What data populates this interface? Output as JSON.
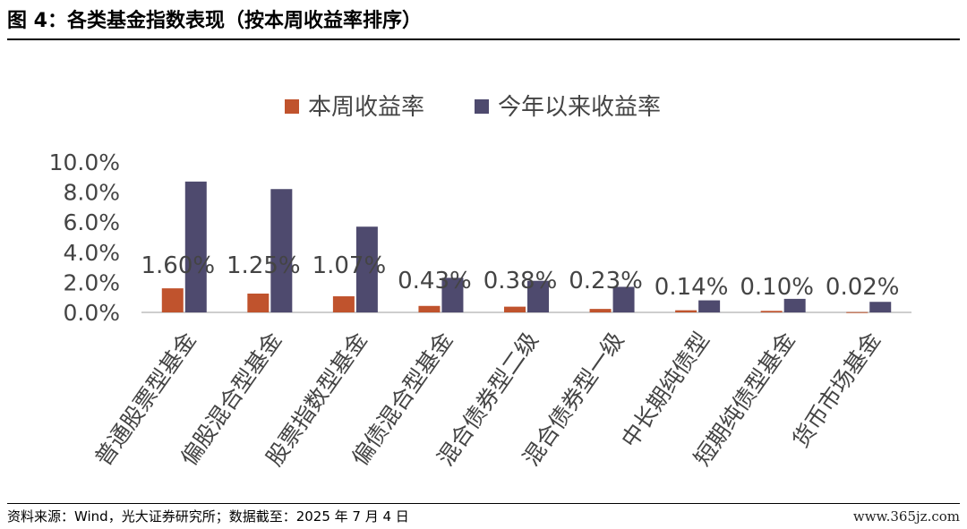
{
  "figure": {
    "title": "图 4：各类基金指数表现（按本周收益率排序）",
    "source": "资料来源：Wind，光大证券研究所；数据截至：2025 年 7 月 4 日",
    "watermark": "www.365jz.com"
  },
  "chart_data": {
    "type": "bar",
    "categories": [
      "普通股票型基金",
      "偏股混合型基金",
      "股票指数型基金",
      "偏债混合型基金",
      "混合债券型二级",
      "混合债券型一级",
      "中长期纯债型",
      "短期纯债型基金",
      "货币市场基金"
    ],
    "series": [
      {
        "name": "本周收益率",
        "color": "#C0532D",
        "values": [
          1.6,
          1.25,
          1.07,
          0.43,
          0.38,
          0.23,
          0.14,
          0.1,
          0.02
        ],
        "labels": [
          "1.60%",
          "1.25%",
          "1.07%",
          "0.43%",
          "0.38%",
          "0.23%",
          "0.14%",
          "0.10%",
          "0.02%"
        ]
      },
      {
        "name": "今年以来收益率",
        "color": "#4E4A6E",
        "values": [
          8.7,
          8.2,
          5.7,
          2.3,
          2.1,
          1.7,
          0.8,
          0.9,
          0.7
        ]
      }
    ],
    "yticks": [
      "0.0%",
      "2.0%",
      "4.0%",
      "6.0%",
      "8.0%",
      "10.0%"
    ],
    "ylim": [
      0,
      10
    ],
    "legend_position": "top-center",
    "grid": false
  }
}
